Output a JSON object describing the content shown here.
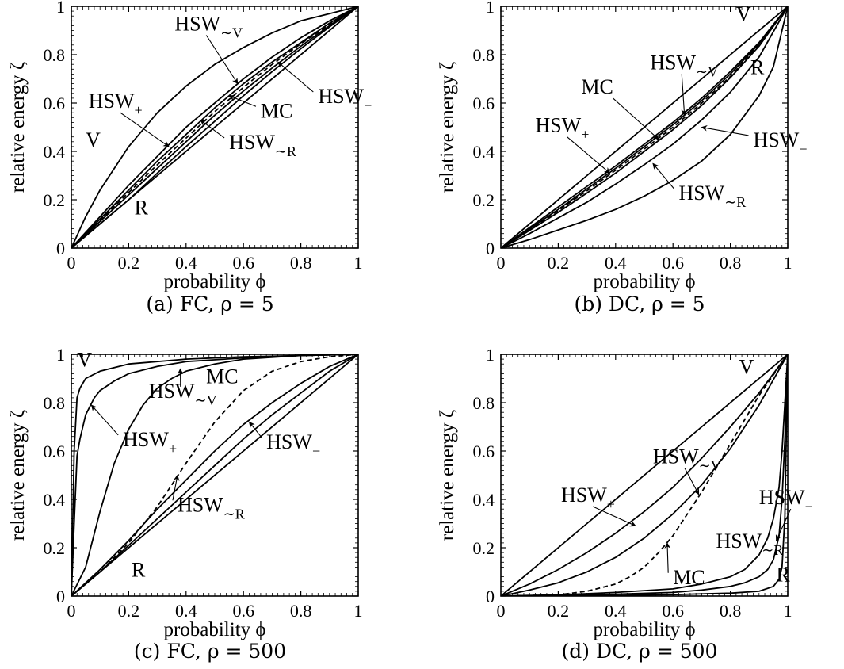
{
  "figure": {
    "panels": [
      {
        "id": "a",
        "caption": "(a) FC, ρ = 5"
      },
      {
        "id": "b",
        "caption": "(b) DC, ρ = 5"
      },
      {
        "id": "c",
        "caption": "(c) FC, ρ = 500"
      },
      {
        "id": "d",
        "caption": "(d) DC, ρ = 500"
      }
    ]
  },
  "chart_data": [
    {
      "panel": "a",
      "type": "line",
      "caption": "(a) FC, ρ = 5",
      "xlabel": "probability ϕ",
      "ylabel": "relative energy ζ",
      "xlim": [
        0,
        1
      ],
      "ylim": [
        0,
        1
      ],
      "xticks": [
        "0",
        "0.2",
        "0.4",
        "0.6",
        "0.8",
        "1"
      ],
      "yticks": [
        "0",
        "0.2",
        "0.4",
        "0.6",
        "0.8",
        "1"
      ],
      "grid": false,
      "series": [
        {
          "name": "V",
          "style": "solid",
          "x": [
            0,
            0.05,
            0.1,
            0.2,
            0.3,
            0.4,
            0.5,
            0.6,
            0.7,
            0.8,
            0.9,
            1
          ],
          "y": [
            0,
            0.13,
            0.24,
            0.42,
            0.56,
            0.67,
            0.76,
            0.83,
            0.89,
            0.94,
            0.97,
            1
          ]
        },
        {
          "name": "HSW+",
          "style": "solid",
          "x": [
            0,
            0.1,
            0.2,
            0.3,
            0.4,
            0.5,
            0.6,
            0.7,
            0.8,
            0.9,
            1
          ],
          "y": [
            0,
            0.13,
            0.26,
            0.38,
            0.5,
            0.6,
            0.7,
            0.79,
            0.87,
            0.94,
            1
          ]
        },
        {
          "name": "HSW~V",
          "style": "solid",
          "x": [
            0,
            0.1,
            0.2,
            0.3,
            0.4,
            0.5,
            0.6,
            0.7,
            0.8,
            0.9,
            1
          ],
          "y": [
            0,
            0.12,
            0.24,
            0.36,
            0.47,
            0.58,
            0.68,
            0.77,
            0.85,
            0.93,
            1
          ]
        },
        {
          "name": "MC",
          "style": "dashed",
          "x": [
            0,
            0.1,
            0.2,
            0.3,
            0.4,
            0.5,
            0.6,
            0.7,
            0.8,
            0.9,
            1
          ],
          "y": [
            0,
            0.115,
            0.23,
            0.345,
            0.455,
            0.565,
            0.665,
            0.76,
            0.845,
            0.925,
            1
          ]
        },
        {
          "name": "HSW~R",
          "style": "solid",
          "x": [
            0,
            0.1,
            0.2,
            0.3,
            0.4,
            0.5,
            0.6,
            0.7,
            0.8,
            0.9,
            1
          ],
          "y": [
            0,
            0.11,
            0.22,
            0.33,
            0.44,
            0.55,
            0.65,
            0.745,
            0.835,
            0.92,
            1
          ]
        },
        {
          "name": "HSW−",
          "style": "solid",
          "x": [
            0,
            0.1,
            0.2,
            0.3,
            0.4,
            0.5,
            0.6,
            0.7,
            0.8,
            0.9,
            1
          ],
          "y": [
            0,
            0.1,
            0.2,
            0.31,
            0.42,
            0.525,
            0.63,
            0.73,
            0.825,
            0.915,
            1
          ]
        },
        {
          "name": "R",
          "style": "solid",
          "x": [
            0,
            1
          ],
          "y": [
            0,
            1
          ]
        }
      ],
      "annotations": [
        {
          "label": "V",
          "x": 0.05,
          "y": 0.42
        },
        {
          "label": "R",
          "x": 0.22,
          "y": 0.14
        },
        {
          "label": "HSW+",
          "x": 0.06,
          "y": 0.58,
          "arrow_to": [
            0.34,
            0.42
          ]
        },
        {
          "label": "HSW~V",
          "x": 0.36,
          "y": 0.9,
          "arrow_to": [
            0.58,
            0.68
          ]
        },
        {
          "label": "MC",
          "x": 0.66,
          "y": 0.54,
          "arrow_to": [
            0.55,
            0.63
          ]
        },
        {
          "label": "HSW−",
          "x": 0.86,
          "y": 0.6,
          "arrow_to": [
            0.72,
            0.77
          ]
        },
        {
          "label": "HSW~R",
          "x": 0.55,
          "y": 0.41,
          "arrow_to": [
            0.45,
            0.53
          ]
        }
      ]
    },
    {
      "panel": "b",
      "type": "line",
      "caption": "(b) DC, ρ = 5",
      "xlabel": "probability ϕ",
      "ylabel": "relative energy ζ",
      "xlim": [
        0,
        1
      ],
      "ylim": [
        0,
        1
      ],
      "xticks": [
        "0",
        "0.2",
        "0.4",
        "0.6",
        "0.8",
        "1"
      ],
      "yticks": [
        "0",
        "0.2",
        "0.4",
        "0.6",
        "0.8",
        "1"
      ],
      "grid": false,
      "series": [
        {
          "name": "V",
          "style": "solid",
          "x": [
            0,
            1
          ],
          "y": [
            0,
            1
          ]
        },
        {
          "name": "HSW+",
          "style": "solid",
          "x": [
            0,
            0.1,
            0.2,
            0.3,
            0.4,
            0.5,
            0.6,
            0.7,
            0.8,
            0.9,
            1
          ],
          "y": [
            0,
            0.085,
            0.17,
            0.255,
            0.34,
            0.43,
            0.52,
            0.62,
            0.73,
            0.85,
            1
          ]
        },
        {
          "name": "HSW~V",
          "style": "solid",
          "x": [
            0,
            0.1,
            0.2,
            0.3,
            0.4,
            0.5,
            0.6,
            0.7,
            0.8,
            0.9,
            1
          ],
          "y": [
            0,
            0.08,
            0.16,
            0.245,
            0.33,
            0.42,
            0.51,
            0.61,
            0.72,
            0.845,
            1
          ]
        },
        {
          "name": "MC",
          "style": "dashed",
          "x": [
            0,
            0.1,
            0.2,
            0.3,
            0.4,
            0.5,
            0.6,
            0.7,
            0.8,
            0.9,
            1
          ],
          "y": [
            0,
            0.077,
            0.155,
            0.237,
            0.322,
            0.41,
            0.5,
            0.6,
            0.71,
            0.84,
            1
          ]
        },
        {
          "name": "HSW~R",
          "style": "solid",
          "x": [
            0,
            0.1,
            0.2,
            0.3,
            0.4,
            0.5,
            0.6,
            0.7,
            0.8,
            0.9,
            1
          ],
          "y": [
            0,
            0.073,
            0.148,
            0.228,
            0.31,
            0.4,
            0.49,
            0.59,
            0.705,
            0.835,
            1
          ]
        },
        {
          "name": "HSW−",
          "style": "solid",
          "x": [
            0,
            0.1,
            0.2,
            0.3,
            0.4,
            0.5,
            0.6,
            0.7,
            0.8,
            0.9,
            1
          ],
          "y": [
            0,
            0.06,
            0.125,
            0.19,
            0.265,
            0.345,
            0.43,
            0.53,
            0.645,
            0.79,
            1
          ]
        },
        {
          "name": "R",
          "style": "solid",
          "x": [
            0,
            0.1,
            0.2,
            0.3,
            0.4,
            0.5,
            0.6,
            0.7,
            0.8,
            0.9,
            0.95,
            1
          ],
          "y": [
            0,
            0.035,
            0.075,
            0.115,
            0.16,
            0.215,
            0.28,
            0.36,
            0.47,
            0.63,
            0.75,
            1
          ]
        }
      ],
      "annotations": [
        {
          "label": "V",
          "x": 0.82,
          "y": 0.94
        },
        {
          "label": "R",
          "x": 0.87,
          "y": 0.72
        },
        {
          "label": "HSW~V",
          "x": 0.52,
          "y": 0.74,
          "arrow_to": [
            0.64,
            0.55
          ]
        },
        {
          "label": "MC",
          "x": 0.28,
          "y": 0.64,
          "arrow_to": [
            0.55,
            0.45
          ]
        },
        {
          "label": "HSW+",
          "x": 0.12,
          "y": 0.48,
          "arrow_to": [
            0.38,
            0.31
          ]
        },
        {
          "label": "HSW−",
          "x": 0.88,
          "y": 0.42,
          "arrow_to": [
            0.7,
            0.5
          ]
        },
        {
          "label": "HSW~R",
          "x": 0.62,
          "y": 0.2,
          "arrow_to": [
            0.53,
            0.35
          ]
        }
      ]
    },
    {
      "panel": "c",
      "type": "line",
      "caption": "(c) FC, ρ = 500",
      "xlabel": "probability ϕ",
      "ylabel": "relative energy ζ",
      "xlim": [
        0,
        1
      ],
      "ylim": [
        0,
        1
      ],
      "xticks": [
        "0",
        "0.2",
        "0.4",
        "0.6",
        "0.8",
        "1"
      ],
      "yticks": [
        "0",
        "0.2",
        "0.4",
        "0.6",
        "0.8",
        "1"
      ],
      "grid": false,
      "series": [
        {
          "name": "V",
          "style": "solid",
          "x": [
            0,
            0.01,
            0.02,
            0.03,
            0.05,
            0.1,
            0.2,
            0.4,
            0.6,
            0.8,
            1
          ],
          "y": [
            0,
            0.6,
            0.82,
            0.86,
            0.9,
            0.93,
            0.96,
            0.98,
            0.99,
            0.995,
            1
          ]
        },
        {
          "name": "HSW+",
          "style": "solid",
          "x": [
            0,
            0.01,
            0.02,
            0.03,
            0.05,
            0.08,
            0.1,
            0.15,
            0.2,
            0.3,
            0.4,
            0.6,
            0.8,
            1
          ],
          "y": [
            0,
            0.3,
            0.58,
            0.65,
            0.75,
            0.82,
            0.85,
            0.89,
            0.92,
            0.95,
            0.97,
            0.985,
            0.995,
            1
          ]
        },
        {
          "name": "HSW~V",
          "style": "solid",
          "x": [
            0,
            0.05,
            0.1,
            0.15,
            0.2,
            0.25,
            0.3,
            0.35,
            0.4,
            0.5,
            0.6,
            0.8,
            1
          ],
          "y": [
            0,
            0.12,
            0.35,
            0.55,
            0.69,
            0.79,
            0.86,
            0.9,
            0.93,
            0.96,
            0.98,
            0.995,
            1
          ]
        },
        {
          "name": "MC",
          "style": "dashed",
          "x": [
            0,
            0.1,
            0.2,
            0.3,
            0.4,
            0.5,
            0.6,
            0.7,
            0.8,
            0.9,
            1
          ],
          "y": [
            0,
            0.1,
            0.22,
            0.37,
            0.55,
            0.72,
            0.85,
            0.93,
            0.97,
            0.99,
            1
          ]
        },
        {
          "name": "HSW~R",
          "style": "solid",
          "x": [
            0,
            0.1,
            0.2,
            0.3,
            0.4,
            0.5,
            0.6,
            0.7,
            0.8,
            0.9,
            1
          ],
          "y": [
            0,
            0.11,
            0.23,
            0.36,
            0.48,
            0.6,
            0.71,
            0.8,
            0.88,
            0.95,
            1
          ]
        },
        {
          "name": "HSW−",
          "style": "solid",
          "x": [
            0,
            0.1,
            0.2,
            0.3,
            0.4,
            0.5,
            0.6,
            0.7,
            0.8,
            0.9,
            1
          ],
          "y": [
            0,
            0.1,
            0.21,
            0.32,
            0.43,
            0.54,
            0.65,
            0.75,
            0.84,
            0.93,
            1
          ]
        },
        {
          "name": "R",
          "style": "solid",
          "x": [
            0,
            1
          ],
          "y": [
            0,
            1
          ]
        }
      ],
      "annotations": [
        {
          "label": "V",
          "x": 0.02,
          "y": 0.95
        },
        {
          "label": "R",
          "x": 0.21,
          "y": 0.08
        },
        {
          "label": "MC",
          "x": 0.47,
          "y": 0.88
        },
        {
          "label": "HSW~V",
          "x": 0.27,
          "y": 0.82,
          "arrow_to": [
            0.38,
            0.94
          ]
        },
        {
          "label": "HSW+",
          "x": 0.18,
          "y": 0.62,
          "arrow_to": [
            0.07,
            0.79
          ]
        },
        {
          "label": "HSW−",
          "x": 0.68,
          "y": 0.61,
          "arrow_to": [
            0.62,
            0.72
          ]
        },
        {
          "label": "HSW~R",
          "x": 0.37,
          "y": 0.35,
          "arrow_to": [
            0.37,
            0.5
          ]
        }
      ]
    },
    {
      "panel": "d",
      "type": "line",
      "caption": "(d) DC, ρ = 500",
      "xlabel": "probability ϕ",
      "ylabel": "relative energy ζ",
      "xlim": [
        0,
        1
      ],
      "ylim": [
        0,
        1
      ],
      "xticks": [
        "0",
        "0.2",
        "0.4",
        "0.6",
        "0.8",
        "1"
      ],
      "yticks": [
        "0",
        "0.2",
        "0.4",
        "0.6",
        "0.8",
        "1"
      ],
      "grid": false,
      "series": [
        {
          "name": "V",
          "style": "solid",
          "x": [
            0,
            1
          ],
          "y": [
            0,
            1
          ]
        },
        {
          "name": "HSW+",
          "style": "solid",
          "x": [
            0,
            0.1,
            0.2,
            0.3,
            0.4,
            0.5,
            0.6,
            0.7,
            0.8,
            0.9,
            1
          ],
          "y": [
            0,
            0.05,
            0.11,
            0.18,
            0.26,
            0.35,
            0.45,
            0.57,
            0.7,
            0.84,
            1
          ]
        },
        {
          "name": "HSW~V",
          "style": "solid",
          "x": [
            0,
            0.1,
            0.2,
            0.3,
            0.4,
            0.5,
            0.6,
            0.7,
            0.8,
            0.9,
            1
          ],
          "y": [
            0,
            0.025,
            0.055,
            0.1,
            0.16,
            0.24,
            0.34,
            0.46,
            0.61,
            0.79,
            1
          ]
        },
        {
          "name": "MC",
          "style": "dashed",
          "x": [
            0,
            0.2,
            0.3,
            0.4,
            0.45,
            0.5,
            0.55,
            0.6,
            0.7,
            0.8,
            0.9,
            1
          ],
          "y": [
            0,
            0.005,
            0.02,
            0.05,
            0.08,
            0.12,
            0.18,
            0.25,
            0.43,
            0.63,
            0.83,
            1
          ]
        },
        {
          "name": "HSW~R",
          "style": "solid",
          "x": [
            0,
            0.2,
            0.4,
            0.6,
            0.7,
            0.8,
            0.85,
            0.9,
            0.93,
            0.95,
            0.97,
            0.98,
            0.99,
            1
          ],
          "y": [
            0,
            0.005,
            0.015,
            0.03,
            0.05,
            0.08,
            0.11,
            0.17,
            0.24,
            0.32,
            0.45,
            0.6,
            0.8,
            1
          ]
        },
        {
          "name": "HSW−",
          "style": "solid",
          "x": [
            0,
            0.2,
            0.4,
            0.6,
            0.7,
            0.8,
            0.85,
            0.9,
            0.93,
            0.95,
            0.97,
            0.98,
            0.99,
            1
          ],
          "y": [
            0,
            0.003,
            0.008,
            0.015,
            0.025,
            0.04,
            0.055,
            0.08,
            0.11,
            0.15,
            0.25,
            0.4,
            0.65,
            1
          ]
        },
        {
          "name": "R",
          "style": "solid",
          "x": [
            0,
            0.2,
            0.4,
            0.6,
            0.8,
            0.9,
            0.95,
            0.97,
            0.98,
            0.99,
            1
          ],
          "y": [
            0,
            0.001,
            0.003,
            0.006,
            0.012,
            0.02,
            0.04,
            0.07,
            0.12,
            0.33,
            1
          ]
        }
      ],
      "annotations": [
        {
          "label": "V",
          "x": 0.83,
          "y": 0.92
        },
        {
          "label": "R",
          "x": 0.96,
          "y": 0.06
        },
        {
          "label": "HSW~V",
          "x": 0.53,
          "y": 0.55,
          "arrow_to": [
            0.69,
            0.42
          ]
        },
        {
          "label": "HSW+",
          "x": 0.21,
          "y": 0.39,
          "arrow_to": [
            0.47,
            0.29
          ]
        },
        {
          "label": "HSW−",
          "x": 0.9,
          "y": 0.38,
          "arrow_to": [
            0.96,
            0.23
          ]
        },
        {
          "label": "HSW~R",
          "x": 0.75,
          "y": 0.2
        },
        {
          "label": "MC",
          "x": 0.6,
          "y": 0.05,
          "arrow_to": [
            0.58,
            0.22
          ]
        }
      ]
    }
  ]
}
